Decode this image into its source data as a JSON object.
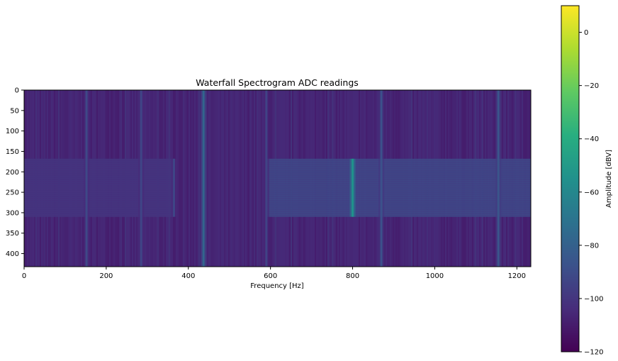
{
  "chart_data": {
    "type": "heatmap",
    "title": "Waterfall Spectrogram ADC readings",
    "xlabel": "Frequency [Hz]",
    "ylabel": "",
    "xlim": [
      0,
      1234
    ],
    "ylim": [
      432,
      0
    ],
    "x_ticks": [
      0,
      200,
      400,
      600,
      800,
      1000,
      1200
    ],
    "y_ticks": [
      0,
      50,
      100,
      150,
      200,
      250,
      300,
      350,
      400
    ],
    "colormap": "viridis",
    "colorbar": {
      "label": "Amplitude [dBV]",
      "range": [
        -120,
        10
      ],
      "ticks": [
        0,
        -20,
        -40,
        -60,
        -80,
        -100,
        -120
      ],
      "tick_labels": [
        "0",
        "−20",
        "−40",
        "−60",
        "−80",
        "−100",
        "−120"
      ]
    },
    "background_level_dbv": -107,
    "features": [
      {
        "kind": "line",
        "freq_hz": 152,
        "y_range": [
          0,
          432
        ],
        "level_dbv": -92
      },
      {
        "kind": "line",
        "freq_hz": 285,
        "y_range": [
          0,
          432
        ],
        "level_dbv": -93
      },
      {
        "kind": "line",
        "freq_hz": 437,
        "y_range": [
          0,
          432
        ],
        "level_dbv": -78
      },
      {
        "kind": "line",
        "freq_hz": 590,
        "y_range": [
          0,
          432
        ],
        "level_dbv": -94
      },
      {
        "kind": "line",
        "freq_hz": 870,
        "y_range": [
          0,
          432
        ],
        "level_dbv": -88
      },
      {
        "kind": "line",
        "freq_hz": 1155,
        "y_range": [
          0,
          432
        ],
        "level_dbv": -86
      },
      {
        "kind": "line",
        "freq_hz": 800,
        "y_range": [
          168,
          310
        ],
        "level_dbv": -55
      },
      {
        "kind": "band",
        "freq_range": [
          590,
          1234
        ],
        "y_range": [
          168,
          310
        ],
        "level_dbv": -93
      },
      {
        "kind": "band",
        "freq_range": [
          0,
          365
        ],
        "y_range": [
          168,
          310
        ],
        "level_dbv": -101
      },
      {
        "kind": "line",
        "freq_hz": 365,
        "y_range": [
          168,
          310
        ],
        "level_dbv": -93
      }
    ]
  }
}
